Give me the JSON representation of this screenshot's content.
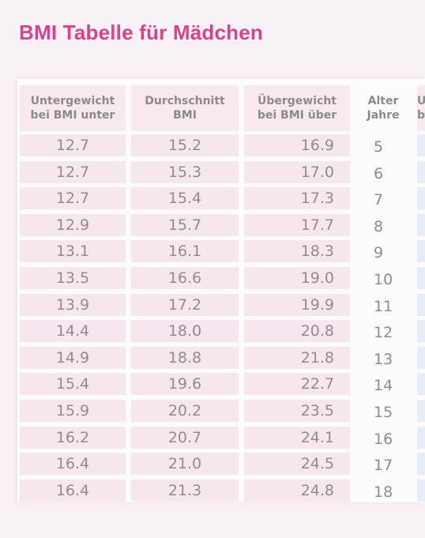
{
  "title": "BMI Tabelle für Mädchen",
  "headers": {
    "underweight": [
      "Untergewicht",
      "bei BMI unter"
    ],
    "average": [
      "Durchschnitt",
      "BMI"
    ],
    "overweight": [
      "Übergewicht",
      "bei BMI über"
    ],
    "age": [
      "Alter",
      "Jahre"
    ],
    "cut": [
      "U",
      "b"
    ]
  },
  "rows": [
    {
      "under": "12.7",
      "avg": "15.2",
      "over": "16.9",
      "age": "5"
    },
    {
      "under": "12.7",
      "avg": "15.3",
      "over": "17.0",
      "age": "6"
    },
    {
      "under": "12.7",
      "avg": "15.4",
      "over": "17.3",
      "age": "7"
    },
    {
      "under": "12.9",
      "avg": "15.7",
      "over": "17.7",
      "age": "8"
    },
    {
      "under": "13.1",
      "avg": "16.1",
      "over": "18.3",
      "age": "9"
    },
    {
      "under": "13.5",
      "avg": "16.6",
      "over": "19.0",
      "age": "10"
    },
    {
      "under": "13.9",
      "avg": "17.2",
      "over": "19.9",
      "age": "11"
    },
    {
      "under": "14.4",
      "avg": "18.0",
      "over": "20.8",
      "age": "12"
    },
    {
      "under": "14.9",
      "avg": "18.8",
      "over": "21.8",
      "age": "13"
    },
    {
      "under": "15.4",
      "avg": "19.6",
      "over": "22.7",
      "age": "14"
    },
    {
      "under": "15.9",
      "avg": "20.2",
      "over": "23.5",
      "age": "15"
    },
    {
      "under": "16.2",
      "avg": "20.7",
      "over": "24.1",
      "age": "16"
    },
    {
      "under": "16.4",
      "avg": "21.0",
      "over": "24.5",
      "age": "17"
    },
    {
      "under": "16.4",
      "avg": "21.3",
      "over": "24.8",
      "age": "18"
    }
  ],
  "colors": {
    "title": "#ea3a8b",
    "row_bg": "#f6e6ee",
    "text": "#8e8e8e"
  }
}
